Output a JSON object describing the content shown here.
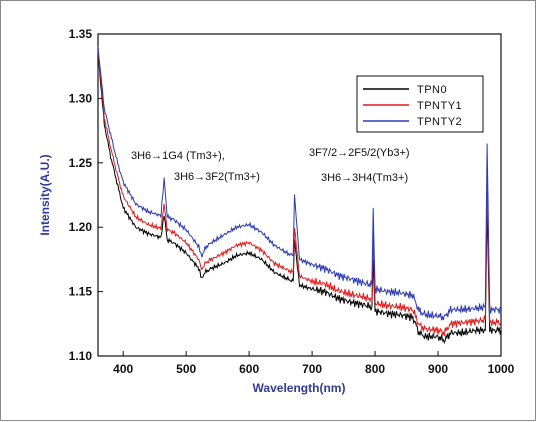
{
  "chart_data": {
    "type": "line",
    "title": "",
    "xlabel": "Wavelength(nm)",
    "ylabel": "Intensity(A.U.)",
    "xlim": [
      360,
      1000
    ],
    "ylim": [
      1.1,
      1.35
    ],
    "x_ticks": [
      400,
      500,
      600,
      700,
      800,
      900,
      1000
    ],
    "x_tick_labels": [
      "400",
      "500",
      "600",
      "700",
      "800",
      "900",
      "1000"
    ],
    "y_ticks": [
      1.1,
      1.15,
      1.2,
      1.25,
      1.3,
      1.35
    ],
    "y_tick_labels": [
      "1.10",
      "1.15",
      "1.20",
      "1.25",
      "1.30",
      "1.35"
    ],
    "grid": false,
    "legend_position": "top-right",
    "series": [
      {
        "name": "TPN0",
        "color": "#000000",
        "x": [
          360,
          370,
          380,
          390,
          400,
          420,
          440,
          460,
          465,
          470,
          480,
          500,
          520,
          525,
          530,
          540,
          560,
          580,
          600,
          620,
          640,
          660,
          670,
          672,
          680,
          700,
          720,
          740,
          760,
          780,
          795,
          797,
          800,
          820,
          840,
          860,
          870,
          880,
          900,
          910,
          920,
          940,
          960,
          975,
          978,
          982,
          990,
          1000
        ],
        "y": [
          1.335,
          1.28,
          1.255,
          1.235,
          1.215,
          1.2,
          1.195,
          1.192,
          1.21,
          1.19,
          1.188,
          1.18,
          1.168,
          1.16,
          1.165,
          1.168,
          1.172,
          1.178,
          1.18,
          1.175,
          1.165,
          1.16,
          1.158,
          1.19,
          1.155,
          1.152,
          1.15,
          1.145,
          1.142,
          1.14,
          1.138,
          1.175,
          1.135,
          1.133,
          1.132,
          1.13,
          1.118,
          1.115,
          1.115,
          1.112,
          1.118,
          1.118,
          1.12,
          1.12,
          1.215,
          1.12,
          1.12,
          1.12
        ]
      },
      {
        "name": "TPNTY1",
        "color": "#e31a1a",
        "x": [
          360,
          370,
          380,
          390,
          400,
          420,
          440,
          460,
          465,
          470,
          480,
          500,
          520,
          525,
          530,
          540,
          560,
          580,
          600,
          620,
          640,
          660,
          670,
          672,
          680,
          700,
          720,
          740,
          760,
          780,
          795,
          797,
          800,
          820,
          840,
          860,
          870,
          880,
          900,
          910,
          920,
          940,
          960,
          975,
          978,
          982,
          990,
          1000
        ],
        "y": [
          1.338,
          1.285,
          1.262,
          1.242,
          1.224,
          1.208,
          1.202,
          1.199,
          1.218,
          1.198,
          1.196,
          1.188,
          1.175,
          1.167,
          1.172,
          1.175,
          1.18,
          1.186,
          1.188,
          1.182,
          1.172,
          1.167,
          1.165,
          1.2,
          1.162,
          1.158,
          1.156,
          1.151,
          1.148,
          1.146,
          1.144,
          1.195,
          1.141,
          1.139,
          1.138,
          1.136,
          1.124,
          1.121,
          1.12,
          1.118,
          1.125,
          1.126,
          1.127,
          1.128,
          1.235,
          1.126,
          1.126,
          1.126
        ]
      },
      {
        "name": "TPNTY2",
        "color": "#2b3ab0",
        "x": [
          360,
          370,
          380,
          390,
          400,
          420,
          440,
          460,
          465,
          470,
          480,
          500,
          520,
          525,
          530,
          540,
          560,
          580,
          600,
          620,
          640,
          660,
          670,
          672,
          680,
          700,
          720,
          740,
          760,
          780,
          795,
          797,
          800,
          820,
          840,
          860,
          870,
          880,
          900,
          910,
          920,
          940,
          960,
          975,
          978,
          982,
          990,
          1000
        ],
        "y": [
          1.34,
          1.292,
          1.272,
          1.252,
          1.235,
          1.218,
          1.212,
          1.209,
          1.238,
          1.208,
          1.206,
          1.198,
          1.185,
          1.177,
          1.184,
          1.188,
          1.194,
          1.2,
          1.202,
          1.196,
          1.186,
          1.18,
          1.178,
          1.225,
          1.175,
          1.171,
          1.168,
          1.163,
          1.16,
          1.157,
          1.155,
          1.215,
          1.152,
          1.15,
          1.149,
          1.147,
          1.135,
          1.132,
          1.131,
          1.13,
          1.136,
          1.136,
          1.137,
          1.138,
          1.265,
          1.136,
          1.136,
          1.136
        ]
      }
    ],
    "annotations": [
      {
        "text": "3H6→1G4 (Tm3+),",
        "x": 465,
        "y": 1.238
      },
      {
        "text": "3H6→3F2(Tm3+)",
        "x": 672,
        "y": 1.225
      },
      {
        "text": "3F7/2→2F5/2(Yb3+)",
        "x": 978,
        "y": 1.265
      },
      {
        "text": "3H6→3H4(Tm3+)",
        "x": 797,
        "y": 1.215
      }
    ]
  }
}
